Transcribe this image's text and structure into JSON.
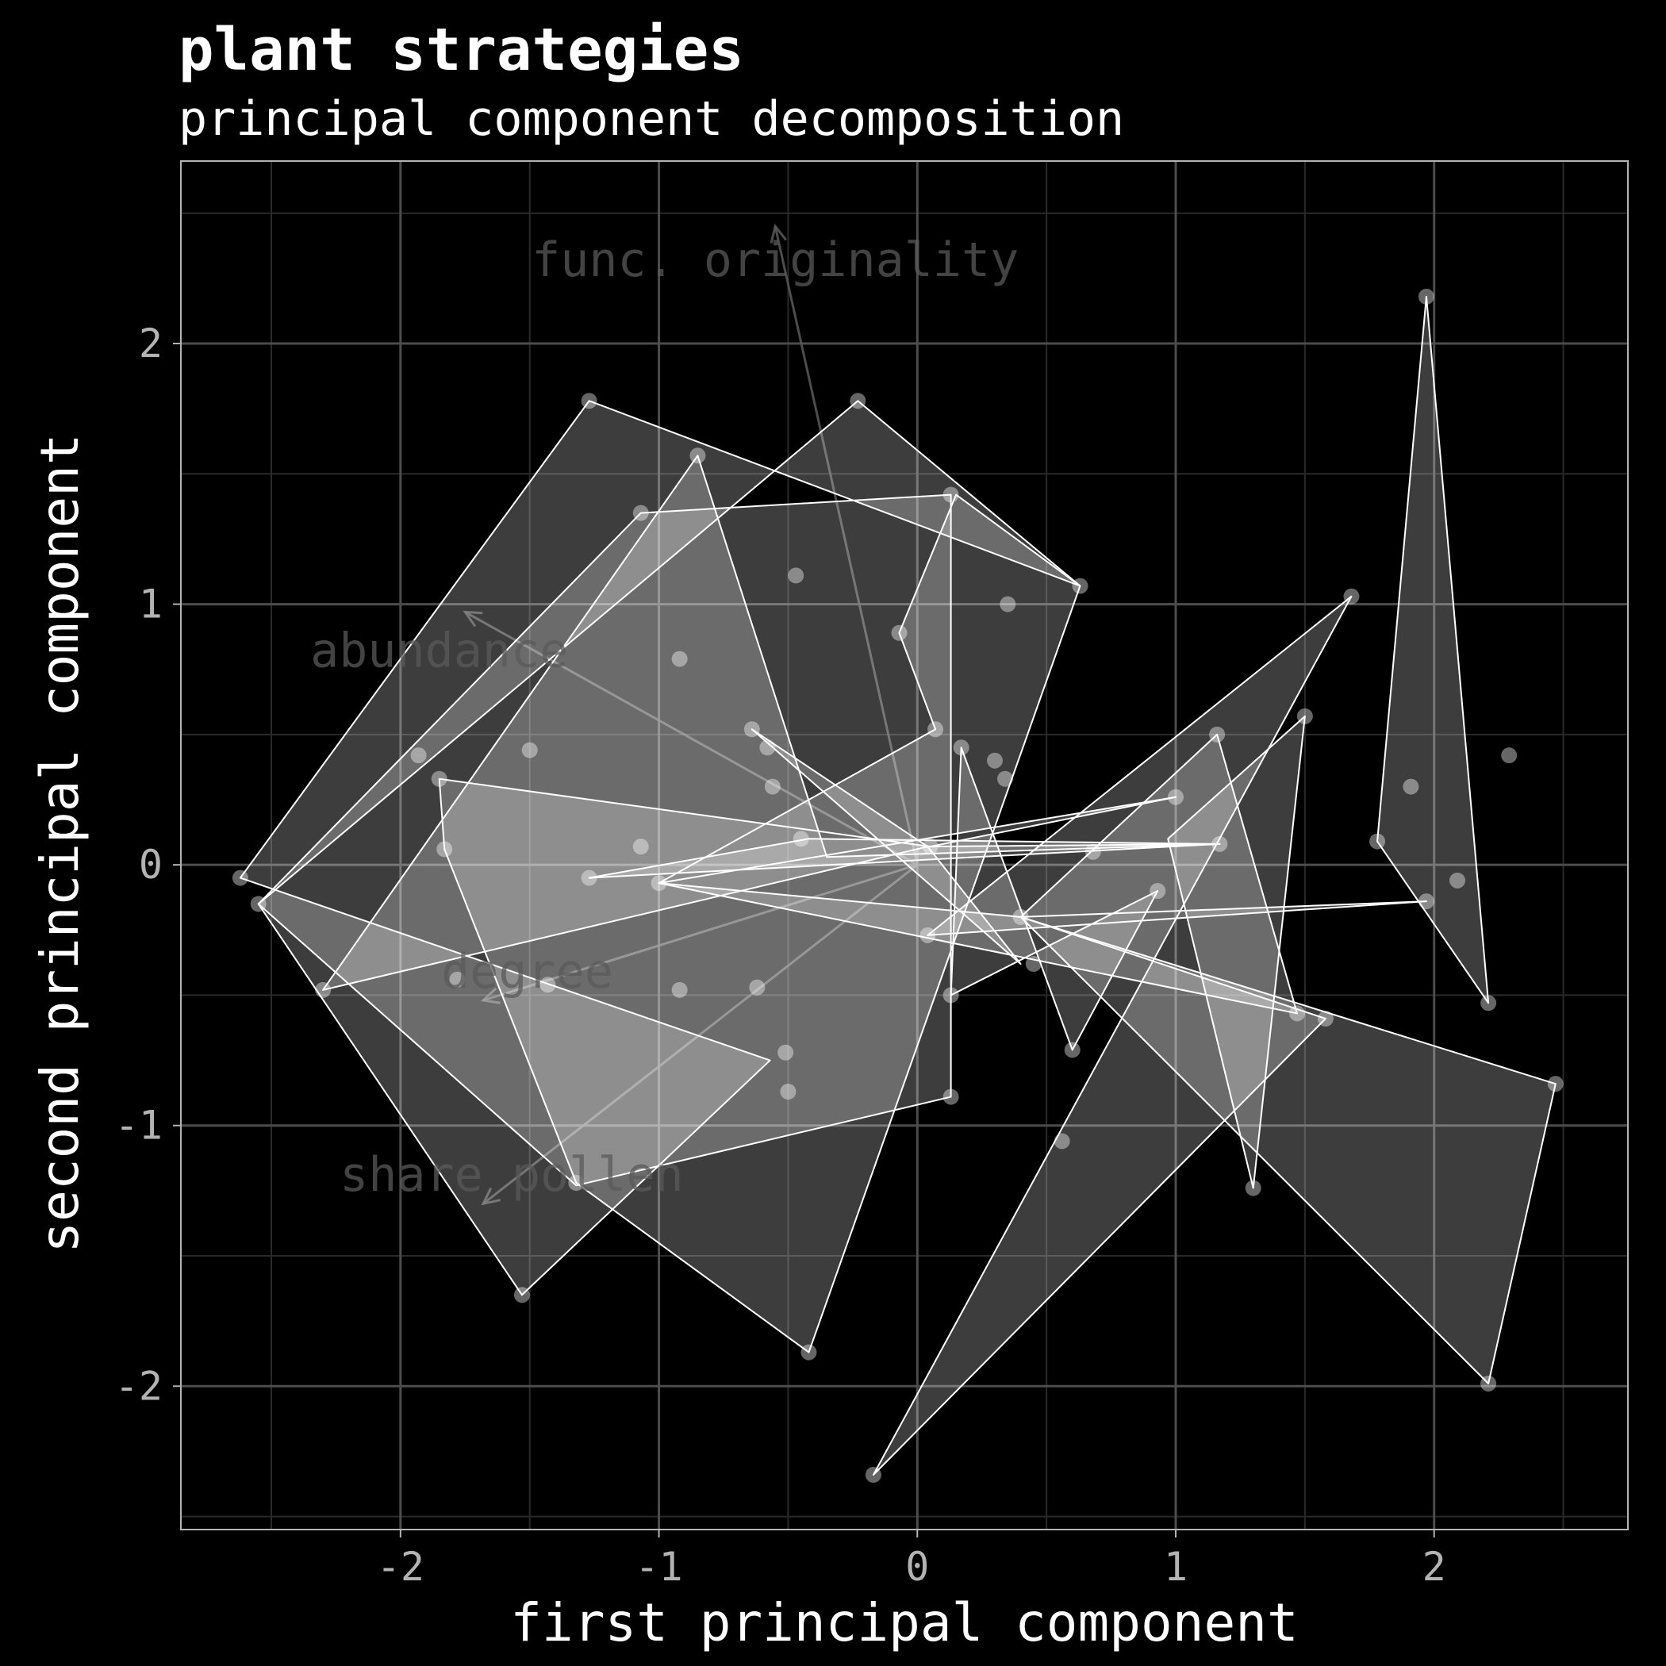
{
  "chart_data": {
    "type": "scatter",
    "title": "plant strategies",
    "subtitle": "principal component decomposition",
    "xlabel": "first principal component",
    "ylabel": "second principal component",
    "xlim": [
      -2.85,
      2.75
    ],
    "ylim": [
      -2.55,
      2.7
    ],
    "x_ticks": [
      -2,
      -1,
      0,
      1,
      2
    ],
    "y_ticks": [
      -2,
      -1,
      0,
      1,
      2
    ],
    "grid": true,
    "colors": {
      "background": "#000000",
      "panel_border": "#b3b3b3",
      "grid_major": "#4d4d4d",
      "grid_minor": "#2a2a2a",
      "hull_fill": "#ffffff",
      "hull_stroke": "#ffffff",
      "point": "#ffffff",
      "arrow": "#5a5a5a"
    },
    "loadings": [
      {
        "label": "func. originality",
        "x": -0.55,
        "y": 2.45
      },
      {
        "label": "abundance",
        "x": -1.75,
        "y": 0.97
      },
      {
        "label": "degree",
        "x": -1.68,
        "y": -0.52
      },
      {
        "label": "share pollen",
        "x": -1.68,
        "y": -1.3
      }
    ],
    "hulls": [
      [
        [
          -2.62,
          -0.05
        ],
        [
          -1.27,
          1.78
        ],
        [
          0.63,
          1.07
        ],
        [
          -0.23,
          1.78
        ],
        [
          -2.55,
          -0.15
        ],
        [
          -1.53,
          -1.65
        ],
        [
          -0.57,
          -0.75
        ]
      ],
      [
        [
          -2.55,
          -0.15
        ],
        [
          -1.07,
          1.35
        ],
        [
          0.13,
          1.42
        ],
        [
          0.13,
          -0.89
        ],
        [
          -1.32,
          -1.23
        ]
      ],
      [
        [
          -2.3,
          -0.48
        ],
        [
          -0.85,
          1.57
        ],
        [
          -0.35,
          0.03
        ],
        [
          1.17,
          0.08
        ],
        [
          0.04,
          0.07
        ]
      ],
      [
        [
          -1.85,
          0.33
        ],
        [
          -1.83,
          0.06
        ],
        [
          -1.32,
          -1.22
        ],
        [
          -0.42,
          -1.87
        ],
        [
          0.63,
          1.07
        ],
        [
          0.15,
          1.42
        ],
        [
          -0.07,
          0.89
        ],
        [
          0.07,
          0.52
        ],
        [
          -1.0,
          -0.07
        ],
        [
          1.0,
          0.26
        ],
        [
          0.05,
          0.07
        ]
      ],
      [
        [
          -1.27,
          -0.05
        ],
        [
          1.17,
          0.08
        ],
        [
          -0.42,
          0.1
        ]
      ],
      [
        [
          -0.64,
          0.52
        ],
        [
          0.04,
          0.07
        ],
        [
          0.4,
          -0.38
        ]
      ],
      [
        [
          0.17,
          0.45
        ],
        [
          0.6,
          -0.71
        ],
        [
          0.93,
          -0.1
        ],
        [
          0.13,
          -0.5
        ]
      ],
      [
        [
          0.4,
          -0.2
        ],
        [
          1.16,
          0.5
        ],
        [
          1.47,
          -0.57
        ],
        [
          -1.0,
          -0.07
        ]
      ],
      [
        [
          0.04,
          -0.27
        ],
        [
          1.97,
          -0.14
        ],
        [
          0.4,
          -0.2
        ],
        [
          1.58,
          -0.59
        ],
        [
          -0.17,
          -2.34
        ],
        [
          1.68,
          1.03
        ]
      ],
      [
        [
          1.3,
          -1.24
        ],
        [
          1.5,
          0.57
        ],
        [
          0.97,
          0.1
        ]
      ],
      [
        [
          1.78,
          0.09
        ],
        [
          1.97,
          2.18
        ],
        [
          2.21,
          -0.53
        ]
      ],
      [
        [
          0.4,
          -0.2
        ],
        [
          2.47,
          -0.84
        ],
        [
          2.21,
          -1.99
        ]
      ]
    ],
    "points": [
      [
        -2.62,
        -0.05
      ],
      [
        -2.55,
        -0.15
      ],
      [
        -2.3,
        -0.48
      ],
      [
        -1.93,
        0.42
      ],
      [
        -1.85,
        0.33
      ],
      [
        -1.83,
        0.06
      ],
      [
        -1.78,
        -0.44
      ],
      [
        -1.5,
        0.44
      ],
      [
        -1.53,
        -1.65
      ],
      [
        -1.43,
        -0.46
      ],
      [
        -1.32,
        -1.22
      ],
      [
        -1.27,
        1.78
      ],
      [
        -1.27,
        -0.05
      ],
      [
        -1.07,
        1.35
      ],
      [
        -1.07,
        0.07
      ],
      [
        -1.0,
        -0.07
      ],
      [
        -0.92,
        0.79
      ],
      [
        -0.92,
        -0.48
      ],
      [
        -0.85,
        1.57
      ],
      [
        -0.64,
        0.52
      ],
      [
        -0.62,
        -0.47
      ],
      [
        -0.58,
        0.45
      ],
      [
        -0.56,
        0.3
      ],
      [
        -0.51,
        -0.72
      ],
      [
        -0.5,
        -0.87
      ],
      [
        -0.47,
        1.11
      ],
      [
        -0.45,
        0.1
      ],
      [
        -0.42,
        -1.87
      ],
      [
        -0.23,
        1.78
      ],
      [
        -0.17,
        -2.34
      ],
      [
        -0.07,
        0.89
      ],
      [
        0.04,
        -0.27
      ],
      [
        0.05,
        0.07
      ],
      [
        0.07,
        0.52
      ],
      [
        0.13,
        1.42
      ],
      [
        0.13,
        -0.5
      ],
      [
        0.13,
        -0.89
      ],
      [
        0.17,
        0.45
      ],
      [
        0.3,
        0.4
      ],
      [
        0.34,
        0.33
      ],
      [
        0.35,
        1.0
      ],
      [
        0.4,
        -0.2
      ],
      [
        0.45,
        -0.38
      ],
      [
        0.56,
        -1.06
      ],
      [
        0.6,
        -0.71
      ],
      [
        0.63,
        1.07
      ],
      [
        0.68,
        0.05
      ],
      [
        0.93,
        -0.1
      ],
      [
        1.0,
        0.26
      ],
      [
        1.16,
        0.5
      ],
      [
        1.17,
        0.08
      ],
      [
        1.3,
        -1.24
      ],
      [
        1.47,
        -0.57
      ],
      [
        1.5,
        0.57
      ],
      [
        1.58,
        -0.59
      ],
      [
        1.68,
        1.03
      ],
      [
        1.78,
        0.09
      ],
      [
        1.91,
        0.3
      ],
      [
        1.97,
        -0.14
      ],
      [
        1.97,
        2.18
      ],
      [
        2.09,
        -0.06
      ],
      [
        2.21,
        -0.53
      ],
      [
        2.21,
        -1.99
      ],
      [
        2.29,
        0.42
      ],
      [
        2.47,
        -0.84
      ]
    ]
  }
}
